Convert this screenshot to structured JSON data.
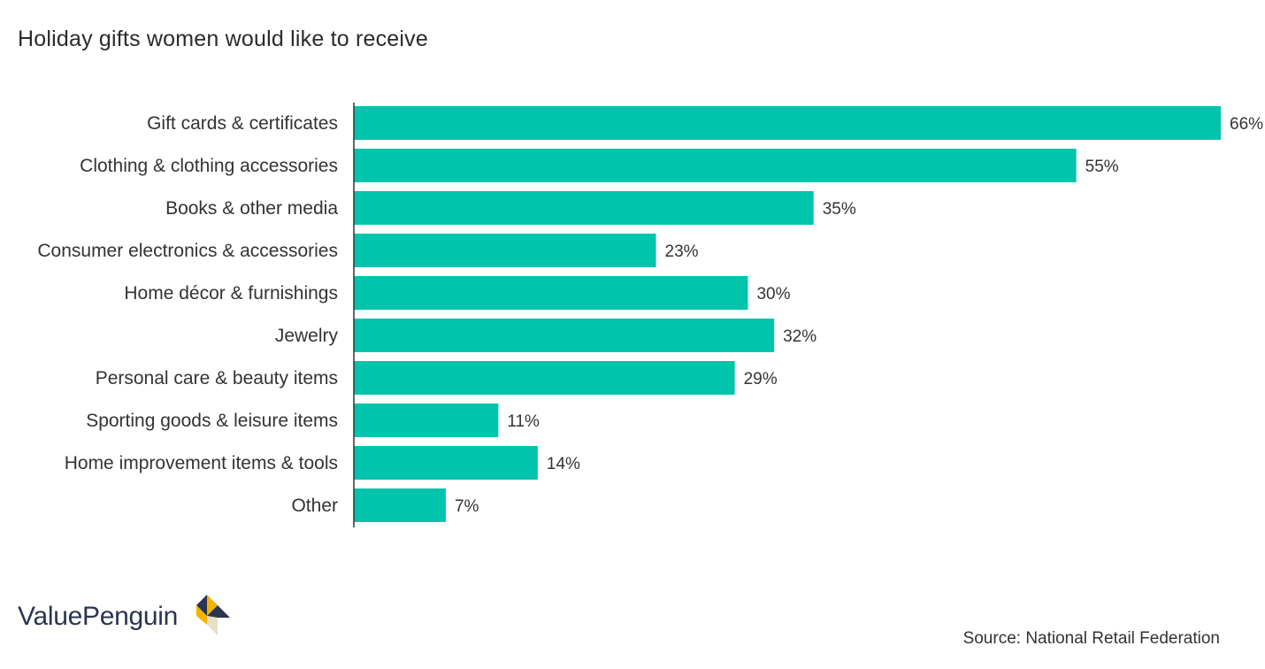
{
  "title": "Holiday gifts women would like to receive",
  "source": "Source: National Retail Federation",
  "brand": {
    "name": "ValuePenguin",
    "logo_colors": [
      "#f2b400",
      "#2a3550",
      "#e7dfc8"
    ]
  },
  "colors": {
    "bar": "#00c4ab",
    "axis": "#333333"
  },
  "chart_data": {
    "type": "bar",
    "orientation": "horizontal",
    "title": "Holiday gifts women would like to receive",
    "categories": [
      "Gift cards & certificates",
      "Clothing & clothing accessories",
      "Books & other media",
      "Consumer electronics & accessories",
      "Home décor & furnishings",
      "Jewelry",
      "Personal care & beauty items",
      "Sporting goods & leisure items",
      "Home improvement items & tools",
      "Other"
    ],
    "values": [
      66,
      55,
      35,
      23,
      30,
      32,
      29,
      11,
      14,
      7
    ],
    "value_labels": [
      "66%",
      "55%",
      "35%",
      "23%",
      "30%",
      "32%",
      "29%",
      "11%",
      "14%",
      "7%"
    ],
    "unit": "%",
    "xlim": [
      0,
      66
    ],
    "grid": false,
    "legend": "none"
  }
}
